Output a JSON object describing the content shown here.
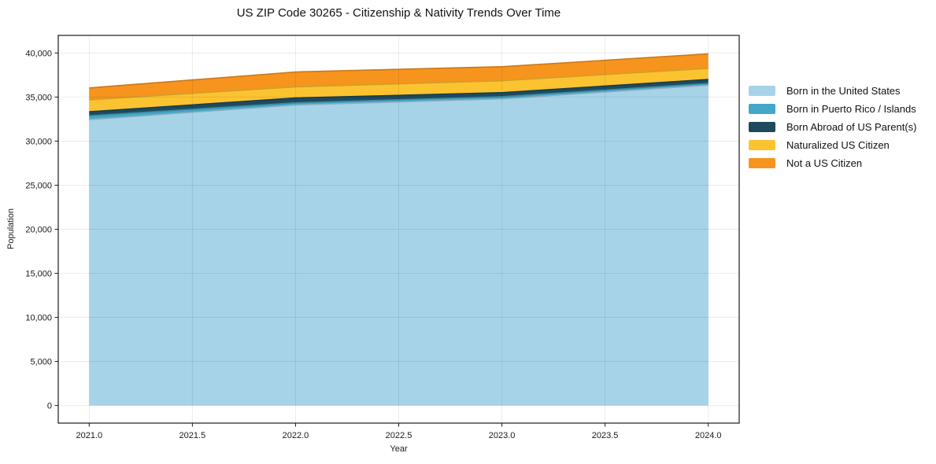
{
  "chart_data": {
    "type": "area",
    "stacked": true,
    "title": "US ZIP Code 30265 - Citizenship & Nativity Trends Over Time",
    "xlabel": "Year",
    "ylabel": "Population",
    "x": [
      2021,
      2022,
      2023,
      2024
    ],
    "series": [
      {
        "name": "Born in the United States",
        "color": "#A7D3E9",
        "values": [
          32450,
          34100,
          34800,
          36350
        ]
      },
      {
        "name": "Born in Puerto Rico / Islands",
        "color": "#44A7C7",
        "values": [
          430,
          250,
          250,
          200
        ]
      },
      {
        "name": "Born Abroad of US Parent(s)",
        "color": "#1F4A5E",
        "values": [
          450,
          550,
          450,
          450
        ]
      },
      {
        "name": "Naturalized US Citizen",
        "color": "#FCC331",
        "values": [
          1360,
          1250,
          1350,
          1250
        ]
      },
      {
        "name": "Not a US Citizen",
        "color": "#F6941E",
        "values": [
          1350,
          1700,
          1600,
          1650
        ]
      }
    ],
    "xlim": [
      2020.85,
      2024.15
    ],
    "ylim": [
      -2000,
      42000
    ],
    "x_ticks": [
      2021.0,
      2021.5,
      2022.0,
      2022.5,
      2023.0,
      2023.5,
      2024.0
    ],
    "x_tick_labels": [
      "2021.0",
      "2021.5",
      "2022.0",
      "2022.5",
      "2023.0",
      "2023.5",
      "2024.0"
    ],
    "y_ticks": [
      0,
      5000,
      10000,
      15000,
      20000,
      25000,
      30000,
      35000,
      40000
    ],
    "y_tick_labels": [
      "0",
      "5,000",
      "10,000",
      "15,000",
      "20,000",
      "25,000",
      "30,000",
      "35,000",
      "40,000"
    ],
    "grid": true,
    "legend_position": "right"
  }
}
